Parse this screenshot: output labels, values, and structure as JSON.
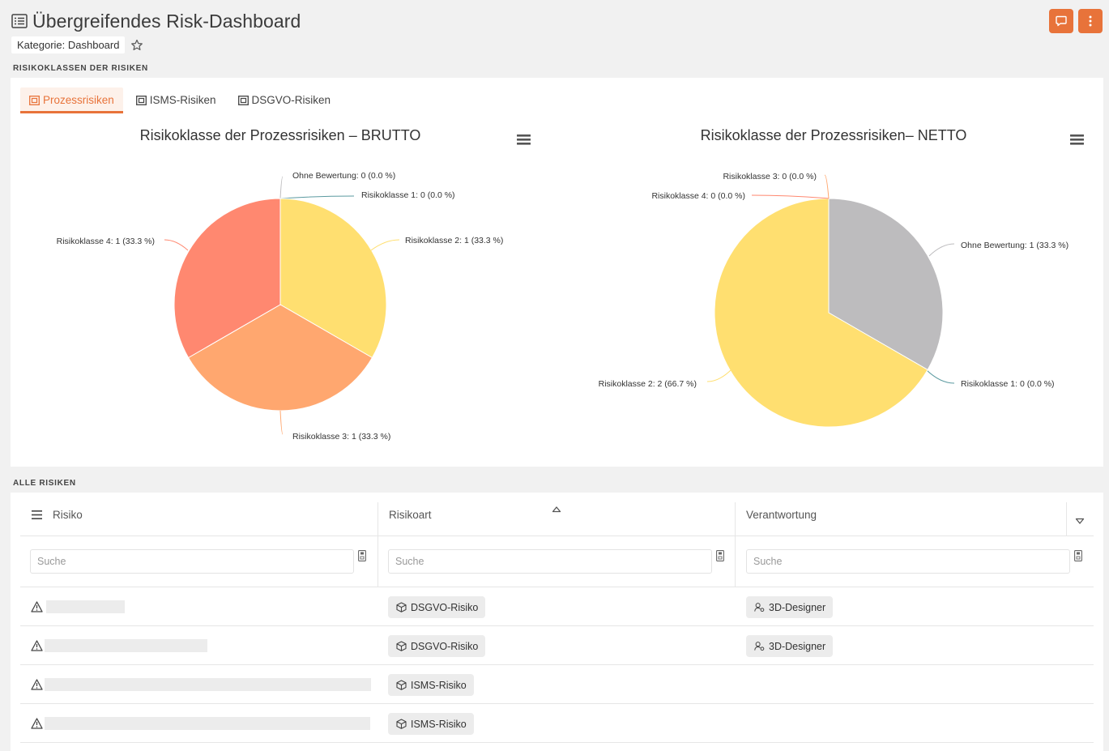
{
  "header": {
    "title": "Übergreifendes Risk-Dashboard",
    "category": "Kategorie: Dashboard",
    "accent_color": "#e8733a"
  },
  "sections": {
    "chart_section": "RISIKOKLASSEN DER RISIKEN",
    "table_section": "ALLE RISIKEN"
  },
  "tabs": [
    {
      "label": "Prozessrisiken",
      "active": true
    },
    {
      "label": "ISMS-Risiken",
      "active": false
    },
    {
      "label": "DSGVO-Risiken",
      "active": false
    }
  ],
  "chart_data": [
    {
      "type": "pie",
      "title": "Risikoklasse der Prozessrisiken – BRUTTO",
      "slices": [
        {
          "name": "Ohne Bewertung",
          "value": 0,
          "label": "Ohne Bewertung: 0 (0.0 %)",
          "color": "#bdbcbe"
        },
        {
          "name": "Risikoklasse 1",
          "value": 0,
          "label": "Risikoklasse 1: 0 (0.0 %)",
          "color": "#5b9aa0"
        },
        {
          "name": "Risikoklasse 2",
          "value": 1,
          "label": "Risikoklasse 2: 1 (33.3 %)",
          "color": "#ffdf70"
        },
        {
          "name": "Risikoklasse 3",
          "value": 1,
          "label": "Risikoklasse 3: 1 (33.3 %)",
          "color": "#ffa76f"
        },
        {
          "name": "Risikoklasse 4",
          "value": 1,
          "label": "Risikoklasse 4: 1 (33.3 %)",
          "color": "#ff8870"
        }
      ]
    },
    {
      "type": "pie",
      "title": "Risikoklasse der Prozessrisiken– NETTO",
      "slices": [
        {
          "name": "Ohne Bewertung",
          "value": 1,
          "label": "Ohne Bewertung: 1 (33.3 %)",
          "color": "#bdbcbe"
        },
        {
          "name": "Risikoklasse 1",
          "value": 0,
          "label": "Risikoklasse 1: 0 (0.0 %)",
          "color": "#5b9aa0"
        },
        {
          "name": "Risikoklasse 2",
          "value": 2,
          "label": "Risikoklasse 2: 2 (66.7 %)",
          "color": "#ffdf70"
        },
        {
          "name": "Risikoklasse 3",
          "value": 0,
          "label": "Risikoklasse 3: 0 (0.0 %)",
          "color": "#ffa76f"
        },
        {
          "name": "Risikoklasse 4",
          "value": 0,
          "label": "Risikoklasse 4: 0 (0.0 %)",
          "color": "#ff8870"
        }
      ]
    }
  ],
  "table": {
    "columns": [
      "Risiko",
      "Risikoart",
      "Verantwortung"
    ],
    "search_placeholder": "Suche",
    "rows": [
      {
        "risikoart": "DSGVO-Risiko",
        "verantwortung": "3D-Designer"
      },
      {
        "risikoart": "DSGVO-Risiko",
        "verantwortung": "3D-Designer"
      },
      {
        "risikoart": "ISMS-Risiko",
        "verantwortung": ""
      },
      {
        "risikoart": "ISMS-Risiko",
        "verantwortung": ""
      }
    ]
  }
}
